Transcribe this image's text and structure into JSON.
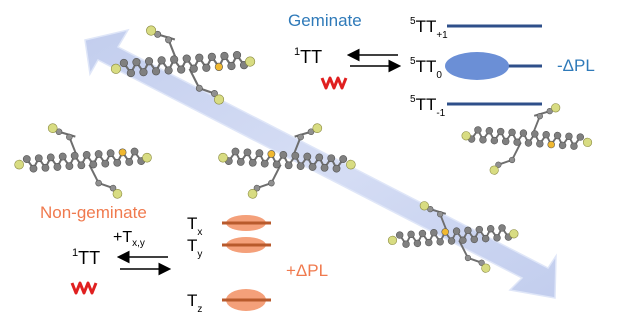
{
  "geminate": {
    "heading": "Geminate",
    "pair_state": "1TT",
    "levels": [
      {
        "label": "5TT",
        "sub": "+1"
      },
      {
        "label": "5TT",
        "sub": "0"
      },
      {
        "label": "5TT",
        "sub": "-1"
      }
    ],
    "pl_effect": "-ΔPL",
    "color": "#2f7ab9",
    "level_color": "#2e4f8a",
    "blob_color": "#6b8fd6"
  },
  "non_geminate": {
    "heading": "Non-geminate",
    "pair_state": "1TT",
    "arrow_label": "+T",
    "arrow_label_sub": "x,y",
    "levels": [
      {
        "label": "T",
        "sub": "x"
      },
      {
        "label": "T",
        "sub": "y"
      },
      {
        "label": "T",
        "sub": "z"
      }
    ],
    "pl_effect": "+ΔPL",
    "color": "#f07a4e",
    "level_color": "#b85a2c",
    "blob_color": "#f4a07a"
  },
  "colors": {
    "diffusion_arrow": "#b9c6ec",
    "atom_carbon": "#808080",
    "atom_fluorine": "#d8dc82",
    "atom_sulfur": "#f0b830",
    "squiggle": "#e02020"
  }
}
